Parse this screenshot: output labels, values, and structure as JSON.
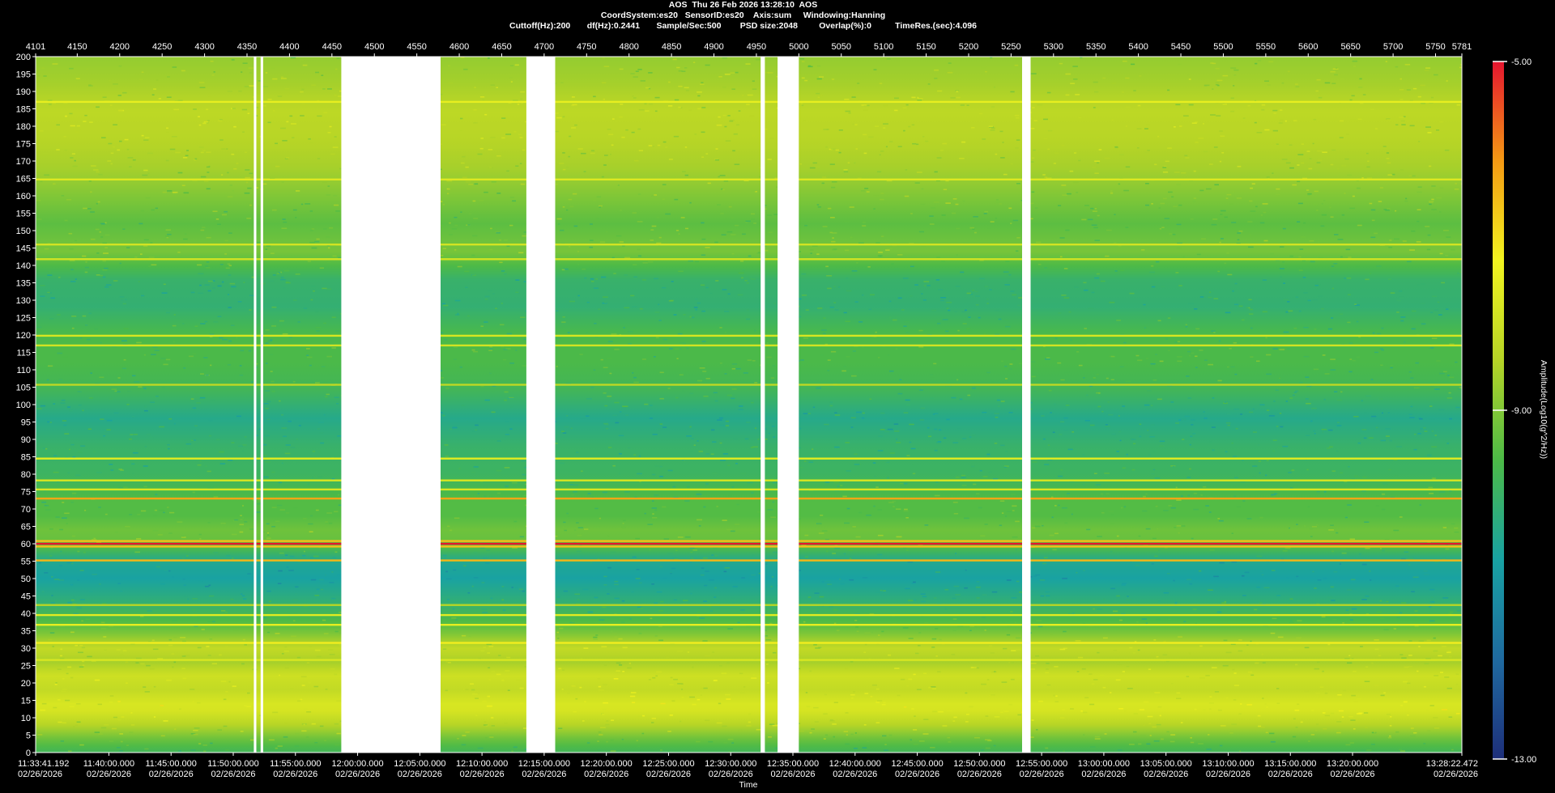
{
  "header": {
    "line1": "AOS  Thu 26 Feb 2026 13:28:10  AOS",
    "line2": "CoordSystem:es20   SensorID:es20    Axis:sum     Windowing:Hanning",
    "line3": "Cuttoff(Hz):200       df(Hz):0.2441       Sample/Sec:500        PSD size:2048         Overlap(%):0          TimeRes.(sec):4.096"
  },
  "colors": {
    "background": "#000000",
    "foreground": "#ffffff",
    "gap": "#ffffff",
    "colormap": [
      "#1e2f7a",
      "#1f6aa0",
      "#18a2a3",
      "#4cba47",
      "#b6d426",
      "#f2f41f",
      "#f59a13",
      "#e5152f"
    ]
  },
  "chart_data": {
    "type": "heatmap",
    "title": "AOS  Thu 26 Feb 2026 13:28:10  AOS",
    "xlabel": "Time",
    "ylabel": "",
    "top_axis": {
      "range": [
        4101,
        5781
      ],
      "ticks": [
        "4101",
        "4150",
        "4200",
        "4250",
        "4300",
        "4350",
        "4400",
        "4450",
        "4500",
        "4550",
        "4600",
        "4650",
        "4700",
        "4750",
        "4800",
        "4850",
        "4900",
        "4950",
        "5000",
        "5050",
        "5100",
        "5150",
        "5200",
        "5250",
        "5300",
        "5350",
        "5400",
        "5450",
        "5500",
        "5550",
        "5600",
        "5650",
        "5700",
        "5750",
        "5781"
      ]
    },
    "y_axis": {
      "range": [
        0,
        200
      ],
      "ticks": [
        0,
        5,
        10,
        15,
        20,
        25,
        30,
        35,
        40,
        45,
        50,
        55,
        60,
        65,
        70,
        75,
        80,
        85,
        90,
        95,
        100,
        105,
        110,
        115,
        120,
        125,
        130,
        135,
        140,
        145,
        150,
        155,
        160,
        165,
        170,
        175,
        180,
        185,
        190,
        195,
        200
      ]
    },
    "x_axis": {
      "ticks": [
        {
          "frame": 4101,
          "time": "11:33:41.192",
          "date": "02/26/2026"
        },
        {
          "frame": 4187.28,
          "time": "11:40:00.000",
          "date": "02/26/2026"
        },
        {
          "frame": 4260.53,
          "time": "11:45:00.000",
          "date": "02/26/2026"
        },
        {
          "frame": 4333.77,
          "time": "11:50:00.000",
          "date": "02/26/2026"
        },
        {
          "frame": 4407.02,
          "time": "11:55:00.000",
          "date": "02/26/2026"
        },
        {
          "frame": 4480.27,
          "time": "12:00:00.000",
          "date": "02/26/2026"
        },
        {
          "frame": 4553.52,
          "time": "12:05:00.000",
          "date": "02/26/2026"
        },
        {
          "frame": 4626.77,
          "time": "12:10:00.000",
          "date": "02/26/2026"
        },
        {
          "frame": 4700.01,
          "time": "12:15:00.000",
          "date": "02/26/2026"
        },
        {
          "frame": 4773.26,
          "time": "12:20:00.000",
          "date": "02/26/2026"
        },
        {
          "frame": 4846.51,
          "time": "12:25:00.000",
          "date": "02/26/2026"
        },
        {
          "frame": 4919.76,
          "time": "12:30:00.000",
          "date": "02/26/2026"
        },
        {
          "frame": 4993.01,
          "time": "12:35:00.000",
          "date": "02/26/2026"
        },
        {
          "frame": 5066.25,
          "time": "12:40:00.000",
          "date": "02/26/2026"
        },
        {
          "frame": 5139.5,
          "time": "12:45:00.000",
          "date": "02/26/2026"
        },
        {
          "frame": 5212.75,
          "time": "12:50:00.000",
          "date": "02/26/2026"
        },
        {
          "frame": 5286.0,
          "time": "12:55:00.000",
          "date": "02/26/2026"
        },
        {
          "frame": 5359.25,
          "time": "13:00:00.000",
          "date": "02/26/2026"
        },
        {
          "frame": 5432.49,
          "time": "13:05:00.000",
          "date": "02/26/2026"
        },
        {
          "frame": 5505.74,
          "time": "13:10:00.000",
          "date": "02/26/2026"
        },
        {
          "frame": 5578.99,
          "time": "13:15:00.000",
          "date": "02/26/2026"
        },
        {
          "frame": 5652.24,
          "time": "13:20:00.000",
          "date": "02/26/2026"
        },
        {
          "frame": 5781,
          "time": "13:28:22.472",
          "date": "02/26/2026"
        }
      ]
    },
    "colorbar": {
      "title": "Amplitude(Log10(g^2/Hz))",
      "range": [
        -13.0,
        -5.0
      ],
      "ticks": [
        "-5.00",
        "-9.00",
        "-13.00"
      ]
    },
    "data_gaps": [
      [
        4358,
        4361
      ],
      [
        4366,
        4369
      ],
      [
        4461,
        4578
      ],
      [
        4679,
        4713
      ],
      [
        4955,
        4960
      ],
      [
        4975,
        5000
      ],
      [
        5263,
        5273
      ]
    ],
    "background_profile": {
      "freq_hz": [
        0,
        3,
        8,
        13,
        18,
        22,
        26,
        30,
        35,
        40,
        45,
        50,
        55,
        60,
        64,
        68,
        72,
        80,
        88,
        96,
        104,
        112,
        120,
        128,
        136,
        144,
        152,
        160,
        168,
        176,
        184,
        192,
        200
      ],
      "amplitude": [
        -9.8,
        -9.4,
        -8.4,
        -7.7,
        -8.2,
        -8.0,
        -8.6,
        -8.2,
        -9.2,
        -9.8,
        -10.3,
        -10.7,
        -10.5,
        -9.3,
        -9.2,
        -9.5,
        -9.5,
        -9.9,
        -10.0,
        -10.4,
        -9.8,
        -9.6,
        -9.6,
        -10.1,
        -10.0,
        -9.1,
        -9.4,
        -9.0,
        -8.6,
        -8.4,
        -8.3,
        -8.6,
        -8.8
      ]
    },
    "tonal_lines": [
      {
        "freq": 60.0,
        "amplitude": -5.0
      },
      {
        "freq": 60.8,
        "amplitude": -6.6
      },
      {
        "freq": 59.2,
        "amplitude": -6.6
      },
      {
        "freq": 73.0,
        "amplitude": -6.3
      },
      {
        "freq": 55.2,
        "amplitude": -6.5
      },
      {
        "freq": 84.5,
        "amplitude": -7.6
      },
      {
        "freq": 78.2,
        "amplitude": -7.8
      },
      {
        "freq": 75.6,
        "amplitude": -7.8
      },
      {
        "freq": 39.5,
        "amplitude": -7.6
      },
      {
        "freq": 36.7,
        "amplitude": -7.5
      },
      {
        "freq": 31.5,
        "amplitude": -7.2
      },
      {
        "freq": 26.6,
        "amplitude": -7.8
      },
      {
        "freq": 187.0,
        "amplitude": -7.5
      },
      {
        "freq": 164.7,
        "amplitude": -7.7
      },
      {
        "freq": 141.8,
        "amplitude": -7.9
      },
      {
        "freq": 146.0,
        "amplitude": -7.9
      },
      {
        "freq": 119.8,
        "amplitude": -7.8
      },
      {
        "freq": 117.0,
        "amplitude": -7.9
      },
      {
        "freq": 105.7,
        "amplitude": -8.3
      },
      {
        "freq": 42.4,
        "amplitude": -8.4
      }
    ]
  }
}
